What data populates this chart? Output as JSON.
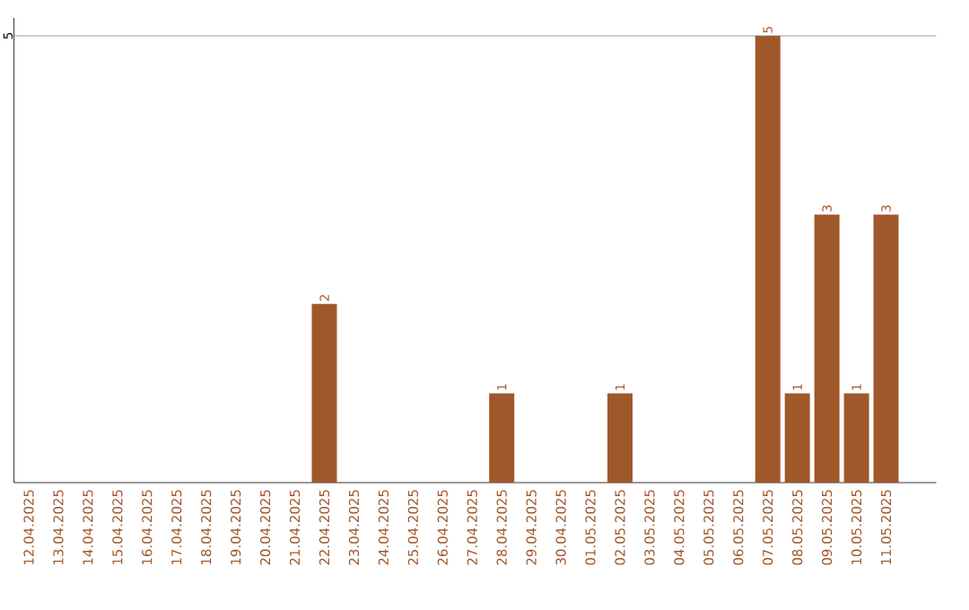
{
  "chart_data": {
    "type": "bar",
    "categories": [
      "12.04.2025",
      "13.04.2025",
      "14.04.2025",
      "15.04.2025",
      "16.04.2025",
      "17.04.2025",
      "18.04.2025",
      "19.04.2025",
      "20.04.2025",
      "21.04.2025",
      "22.04.2025",
      "23.04.2025",
      "24.04.2025",
      "25.04.2025",
      "26.04.2025",
      "27.04.2025",
      "28.04.2025",
      "29.04.2025",
      "30.04.2025",
      "01.05.2025",
      "02.05.2025",
      "03.05.2025",
      "04.05.2025",
      "05.05.2025",
      "06.05.2025",
      "07.05.2025",
      "08.05.2025",
      "09.05.2025",
      "10.05.2025",
      "11.05.2025"
    ],
    "values": [
      0,
      0,
      0,
      0,
      0,
      0,
      0,
      0,
      0,
      0,
      2,
      0,
      0,
      0,
      0,
      0,
      1,
      0,
      0,
      0,
      1,
      0,
      0,
      0,
      0,
      5,
      1,
      3,
      1,
      3
    ],
    "value_labels": [
      null,
      null,
      null,
      null,
      null,
      null,
      null,
      null,
      null,
      null,
      "2",
      null,
      null,
      null,
      null,
      null,
      "1",
      null,
      null,
      null,
      "1",
      null,
      null,
      null,
      null,
      "5",
      "1",
      "3",
      "1",
      "3"
    ],
    "color": "#a0582a",
    "ylim": [
      0,
      5.2
    ],
    "yticks": [
      5
    ],
    "grid": "y"
  }
}
